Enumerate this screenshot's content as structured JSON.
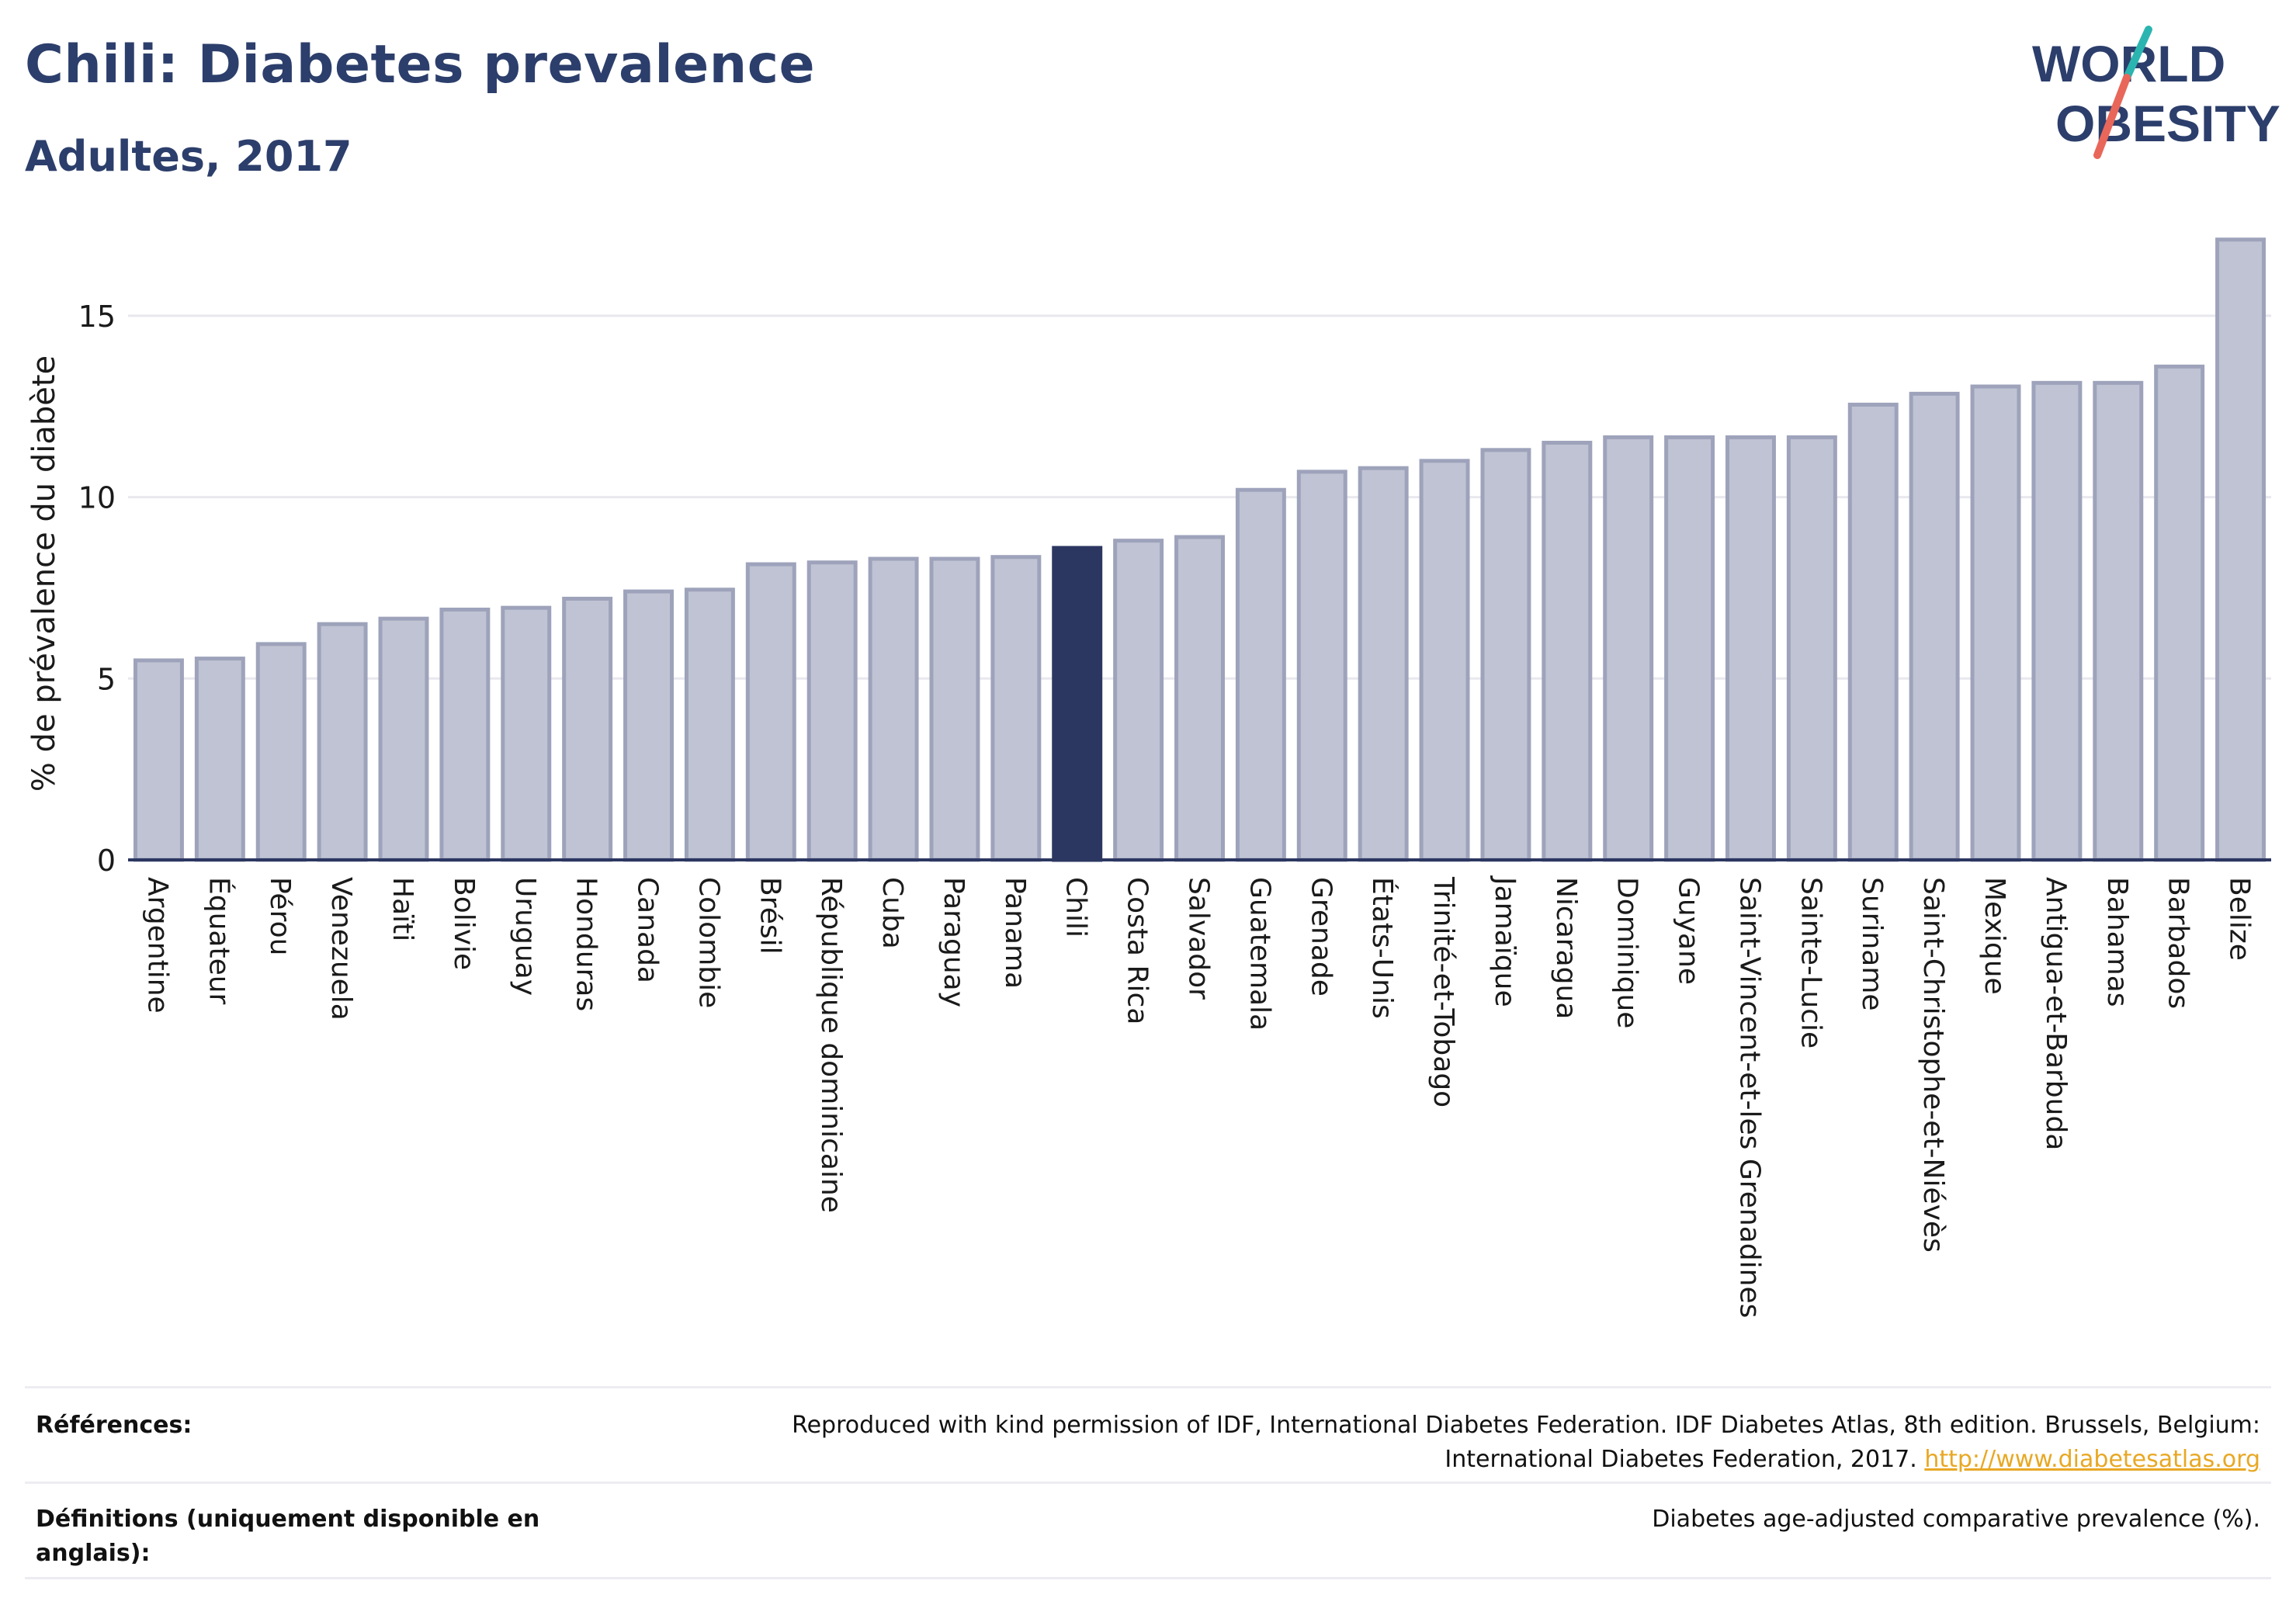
{
  "header": {
    "title": "Chili: Diabetes prevalence",
    "subtitle": "Adultes, 2017"
  },
  "logo": {
    "line1": "WORLD",
    "line2": "OBESITY",
    "colors": {
      "text": "#2c3e6b",
      "slash_top": "#2bb5b0",
      "slash_bottom": "#e8675a"
    }
  },
  "colors": {
    "bar": "#bfc3d3",
    "bar_edge": "#9ea3bb",
    "highlight": "#2c3761",
    "grid": "#e8e8ee",
    "axis": "#2c3761"
  },
  "chart_data": {
    "type": "bar",
    "title": "Chili: Diabetes prevalence",
    "subtitle": "Adultes, 2017",
    "xlabel": "",
    "ylabel": "% de prévalence du diabète",
    "ylim": [
      0,
      17.5
    ],
    "yticks": [
      0,
      5,
      10,
      15
    ],
    "highlight": "Chili",
    "grid": true,
    "categories": [
      "Argentine",
      "Équateur",
      "Pérou",
      "Venezuela",
      "Haïti",
      "Bolivie",
      "Uruguay",
      "Honduras",
      "Canada",
      "Colombie",
      "Brésil",
      "République dominicaine",
      "Cuba",
      "Paraguay",
      "Panama",
      "Chili",
      "Costa Rica",
      "Salvador",
      "Guatemala",
      "Grenade",
      "États-Unis",
      "Trinité-et-Tobago",
      "Jamaïque",
      "Nicaragua",
      "Dominique",
      "Guyane",
      "Saint-Vincent-et-les Grenadines",
      "Sainte-Lucie",
      "Suriname",
      "Saint-Christophe-et-Niévès",
      "Mexique",
      "Antigua-et-Barbuda",
      "Bahamas",
      "Barbados",
      "Belize"
    ],
    "values": [
      5.5,
      5.55,
      5.95,
      6.5,
      6.65,
      6.9,
      6.95,
      7.2,
      7.4,
      7.45,
      8.15,
      8.2,
      8.3,
      8.3,
      8.35,
      8.6,
      8.8,
      8.9,
      10.2,
      10.7,
      10.8,
      11.0,
      11.3,
      11.5,
      11.65,
      11.65,
      11.65,
      11.65,
      12.55,
      12.85,
      13.05,
      13.15,
      13.15,
      13.6,
      17.1
    ]
  },
  "references": {
    "label": "Références:",
    "text": "Reproduced with kind permission of IDF, International Diabetes Federation. IDF Diabetes Atlas, 8th edition. Brussels, Belgium:",
    "text2": "International Diabetes Federation, 2017.",
    "link": "http://www.diabetesatlas.org"
  },
  "definitions": {
    "label_line1": "Définitions (uniquement disponible en",
    "label_line2": "anglais):",
    "text": "Diabetes age-adjusted comparative prevalence (%)."
  }
}
